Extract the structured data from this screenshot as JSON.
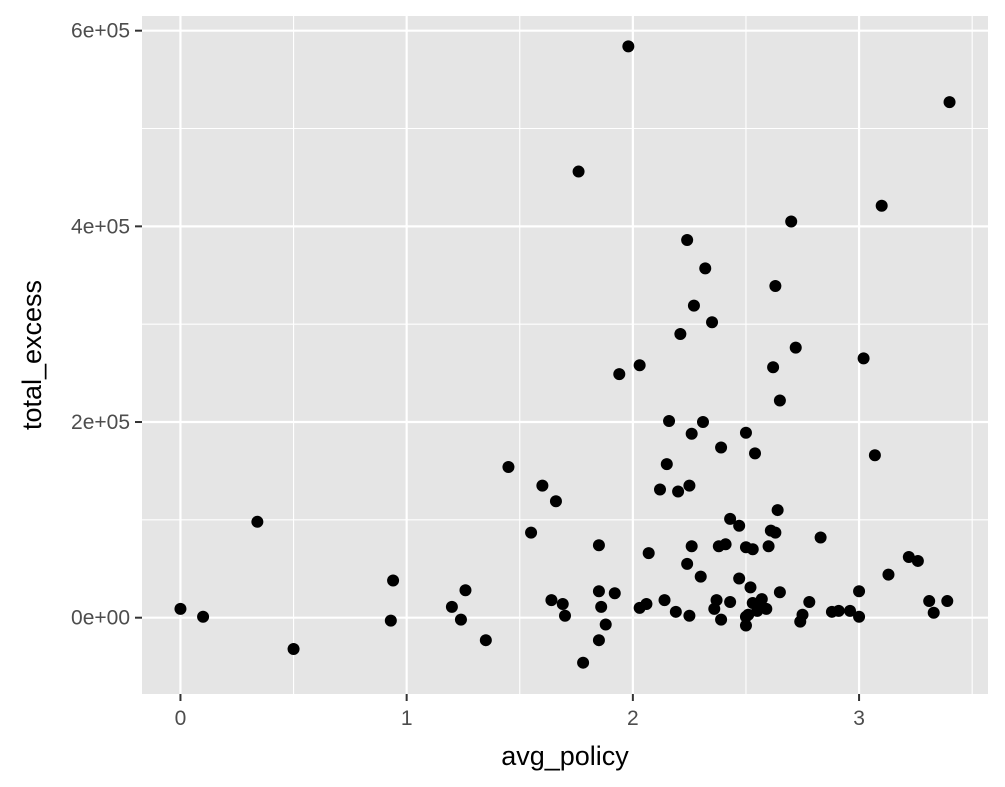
{
  "chart_data": {
    "type": "scatter",
    "title": "",
    "xlabel": "avg_policy",
    "ylabel": "total_excess",
    "xlim": [
      -0.17,
      3.57
    ],
    "ylim": [
      -78000,
      615000
    ],
    "x_ticks": [
      0,
      1,
      2,
      3
    ],
    "x_tick_labels": [
      "0",
      "1",
      "2",
      "3"
    ],
    "y_ticks": [
      0,
      200000,
      400000,
      600000
    ],
    "y_tick_labels": [
      "0e+00",
      "2e+05",
      "4e+05",
      "6e+05"
    ],
    "grid": true,
    "legend": "none",
    "colors": {
      "panel": "#e5e5e5",
      "grid": "#ffffff",
      "point": "#000000"
    },
    "points": [
      {
        "x": 0.0,
        "y": 9000
      },
      {
        "x": 0.1,
        "y": 1000
      },
      {
        "x": 0.34,
        "y": 98000
      },
      {
        "x": 0.5,
        "y": -32000
      },
      {
        "x": 0.93,
        "y": -3000
      },
      {
        "x": 0.94,
        "y": 38000
      },
      {
        "x": 1.2,
        "y": 11000
      },
      {
        "x": 1.24,
        "y": -2000
      },
      {
        "x": 1.26,
        "y": 28000
      },
      {
        "x": 1.35,
        "y": -23000
      },
      {
        "x": 1.45,
        "y": 154000
      },
      {
        "x": 1.55,
        "y": 87000
      },
      {
        "x": 1.6,
        "y": 135000
      },
      {
        "x": 1.64,
        "y": 18000
      },
      {
        "x": 1.66,
        "y": 119000
      },
      {
        "x": 1.69,
        "y": 14000
      },
      {
        "x": 1.7,
        "y": 2000
      },
      {
        "x": 1.76,
        "y": 456000
      },
      {
        "x": 1.78,
        "y": -46000
      },
      {
        "x": 1.85,
        "y": 74000
      },
      {
        "x": 1.85,
        "y": 27000
      },
      {
        "x": 1.86,
        "y": 11000
      },
      {
        "x": 1.85,
        "y": -23000
      },
      {
        "x": 1.88,
        "y": -7000
      },
      {
        "x": 1.92,
        "y": 25000
      },
      {
        "x": 1.94,
        "y": 249000
      },
      {
        "x": 1.98,
        "y": 584000
      },
      {
        "x": 2.03,
        "y": 258000
      },
      {
        "x": 2.03,
        "y": 10000
      },
      {
        "x": 2.06,
        "y": 14000
      },
      {
        "x": 2.07,
        "y": 66000
      },
      {
        "x": 2.12,
        "y": 131000
      },
      {
        "x": 2.14,
        "y": 18000
      },
      {
        "x": 2.15,
        "y": 157000
      },
      {
        "x": 2.16,
        "y": 201000
      },
      {
        "x": 2.19,
        "y": 6000
      },
      {
        "x": 2.2,
        "y": 129000
      },
      {
        "x": 2.21,
        "y": 290000
      },
      {
        "x": 2.24,
        "y": 386000
      },
      {
        "x": 2.24,
        "y": 55000
      },
      {
        "x": 2.25,
        "y": 135000
      },
      {
        "x": 2.25,
        "y": 2000
      },
      {
        "x": 2.26,
        "y": 73000
      },
      {
        "x": 2.26,
        "y": 188000
      },
      {
        "x": 2.27,
        "y": 319000
      },
      {
        "x": 2.3,
        "y": 42000
      },
      {
        "x": 2.31,
        "y": 200000
      },
      {
        "x": 2.32,
        "y": 357000
      },
      {
        "x": 2.35,
        "y": 302000
      },
      {
        "x": 2.36,
        "y": 9000
      },
      {
        "x": 2.37,
        "y": 18000
      },
      {
        "x": 2.38,
        "y": 73000
      },
      {
        "x": 2.39,
        "y": 174000
      },
      {
        "x": 2.39,
        "y": -2000
      },
      {
        "x": 2.41,
        "y": 75000
      },
      {
        "x": 2.43,
        "y": 101000
      },
      {
        "x": 2.43,
        "y": 16000
      },
      {
        "x": 2.47,
        "y": 40000
      },
      {
        "x": 2.47,
        "y": 94000
      },
      {
        "x": 2.5,
        "y": 189000
      },
      {
        "x": 2.5,
        "y": 72000
      },
      {
        "x": 2.5,
        "y": 1000
      },
      {
        "x": 2.5,
        "y": -8000
      },
      {
        "x": 2.51,
        "y": 3000
      },
      {
        "x": 2.52,
        "y": 31000
      },
      {
        "x": 2.53,
        "y": 70000
      },
      {
        "x": 2.53,
        "y": 15000
      },
      {
        "x": 2.54,
        "y": 168000
      },
      {
        "x": 2.55,
        "y": 7000
      },
      {
        "x": 2.56,
        "y": 14000
      },
      {
        "x": 2.57,
        "y": 19000
      },
      {
        "x": 2.59,
        "y": 9000
      },
      {
        "x": 2.6,
        "y": 73000
      },
      {
        "x": 2.61,
        "y": 89000
      },
      {
        "x": 2.62,
        "y": 256000
      },
      {
        "x": 2.63,
        "y": 87000
      },
      {
        "x": 2.63,
        "y": 339000
      },
      {
        "x": 2.64,
        "y": 110000
      },
      {
        "x": 2.65,
        "y": 222000
      },
      {
        "x": 2.65,
        "y": 26000
      },
      {
        "x": 2.7,
        "y": 405000
      },
      {
        "x": 2.72,
        "y": 276000
      },
      {
        "x": 2.74,
        "y": -4000
      },
      {
        "x": 2.75,
        "y": 3000
      },
      {
        "x": 2.78,
        "y": 16000
      },
      {
        "x": 2.83,
        "y": 82000
      },
      {
        "x": 2.88,
        "y": 6000
      },
      {
        "x": 2.91,
        "y": 7000
      },
      {
        "x": 2.96,
        "y": 7000
      },
      {
        "x": 3.0,
        "y": 27000
      },
      {
        "x": 3.0,
        "y": 1000
      },
      {
        "x": 3.02,
        "y": 265000
      },
      {
        "x": 3.07,
        "y": 166000
      },
      {
        "x": 3.1,
        "y": 421000
      },
      {
        "x": 3.13,
        "y": 44000
      },
      {
        "x": 3.22,
        "y": 62000
      },
      {
        "x": 3.26,
        "y": 58000
      },
      {
        "x": 3.31,
        "y": 17000
      },
      {
        "x": 3.33,
        "y": 5000
      },
      {
        "x": 3.39,
        "y": 17000
      },
      {
        "x": 3.4,
        "y": 527000
      }
    ]
  }
}
